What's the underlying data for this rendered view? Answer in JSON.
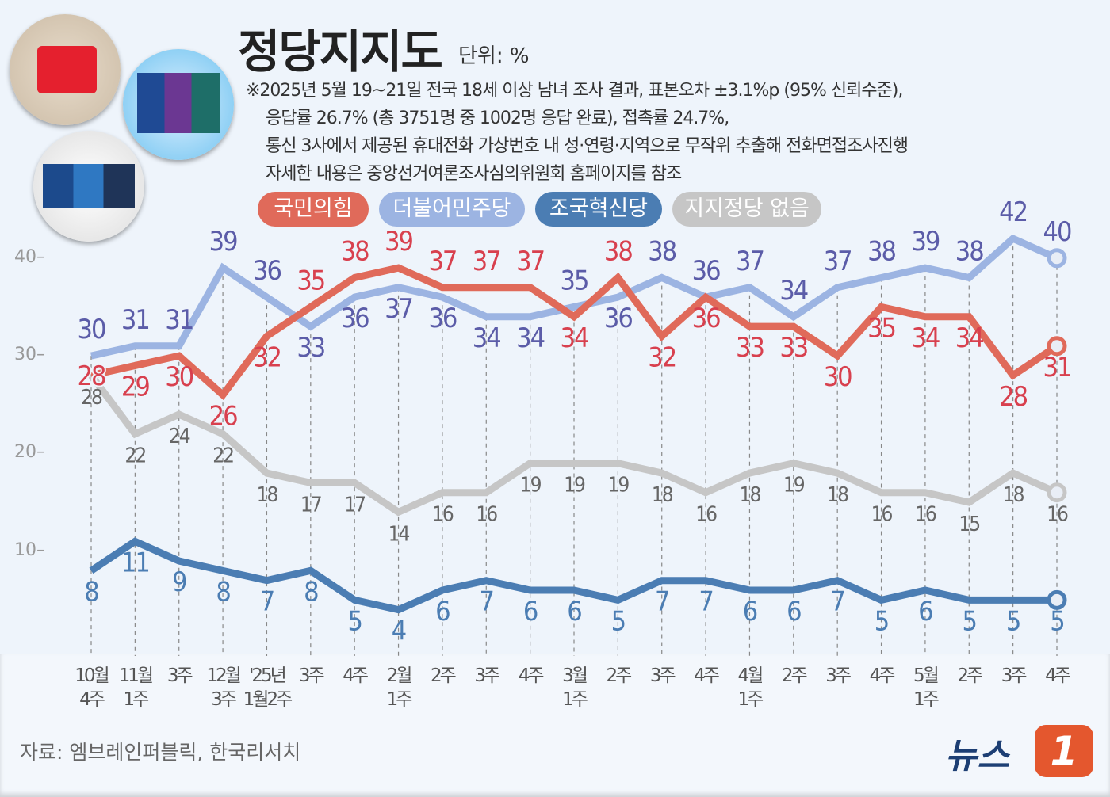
{
  "header": {
    "title": "정당지지도",
    "unit": "단위: %",
    "notes": [
      "※2025년 5월 19~21일 전국 18세 이상 남녀 조사 결과, 표본오차 ±3.1%p (95% 신뢰수준),",
      "응답률 26.7% (총 3751명 중 1002명 응답 완료), 접촉률 24.7%,",
      "통신 3사에서 제공된 휴대전화 가상번호 내 성·연령·지역으로 무작위 추출해 전화면접조사진행",
      "자세한 내용은 중앙선거여론조사심의위원회 홈페이지를 참조"
    ]
  },
  "footer": {
    "source": "자료: 엠브레인퍼블릭, 한국리서치",
    "brand": "뉴스",
    "brand_mark": "1"
  },
  "chart_data": {
    "type": "line",
    "categories": [
      "10월\n4주",
      "11월\n1주",
      "3주",
      "12월\n3주",
      "'25년\n1월2주",
      "3주",
      "4주",
      "2월\n1주",
      "2주",
      "3주",
      "4주",
      "3월\n1주",
      "2주",
      "3주",
      "4주",
      "4월\n1주",
      "2주",
      "3주",
      "4주",
      "5월\n1주",
      "2주",
      "3주",
      "4주"
    ],
    "ylim": [
      0,
      45
    ],
    "yticks": [
      10,
      20,
      30,
      40
    ],
    "grid": "vertical dashed",
    "legend": "top",
    "series": [
      {
        "name": "국민의힘",
        "color": "#e06a5a",
        "label_color": "#d8404e",
        "values": [
          28,
          29,
          30,
          26,
          32,
          35,
          38,
          39,
          37,
          37,
          37,
          34,
          38,
          32,
          36,
          33,
          33,
          30,
          35,
          34,
          34,
          28,
          31
        ]
      },
      {
        "name": "더불어민주당",
        "color": "#9cb4e2",
        "label_color": "#5b5ca8",
        "values": [
          30,
          31,
          31,
          39,
          36,
          33,
          36,
          37,
          36,
          34,
          34,
          35,
          36,
          38,
          36,
          37,
          34,
          37,
          38,
          39,
          38,
          42,
          40
        ]
      },
      {
        "name": "조국혁신당",
        "color": "#4b7db3",
        "label_color": "#4b7db3",
        "values": [
          8,
          11,
          9,
          8,
          7,
          8,
          5,
          4,
          6,
          7,
          6,
          6,
          5,
          7,
          7,
          6,
          6,
          7,
          5,
          6,
          5,
          5,
          5
        ]
      },
      {
        "name": "지지정당 없음",
        "color": "#c6c6c6",
        "label_color": "#666666",
        "values": [
          28,
          22,
          24,
          22,
          18,
          17,
          17,
          14,
          16,
          16,
          19,
          19,
          19,
          18,
          16,
          18,
          19,
          18,
          16,
          16,
          15,
          18,
          16
        ]
      }
    ]
  }
}
